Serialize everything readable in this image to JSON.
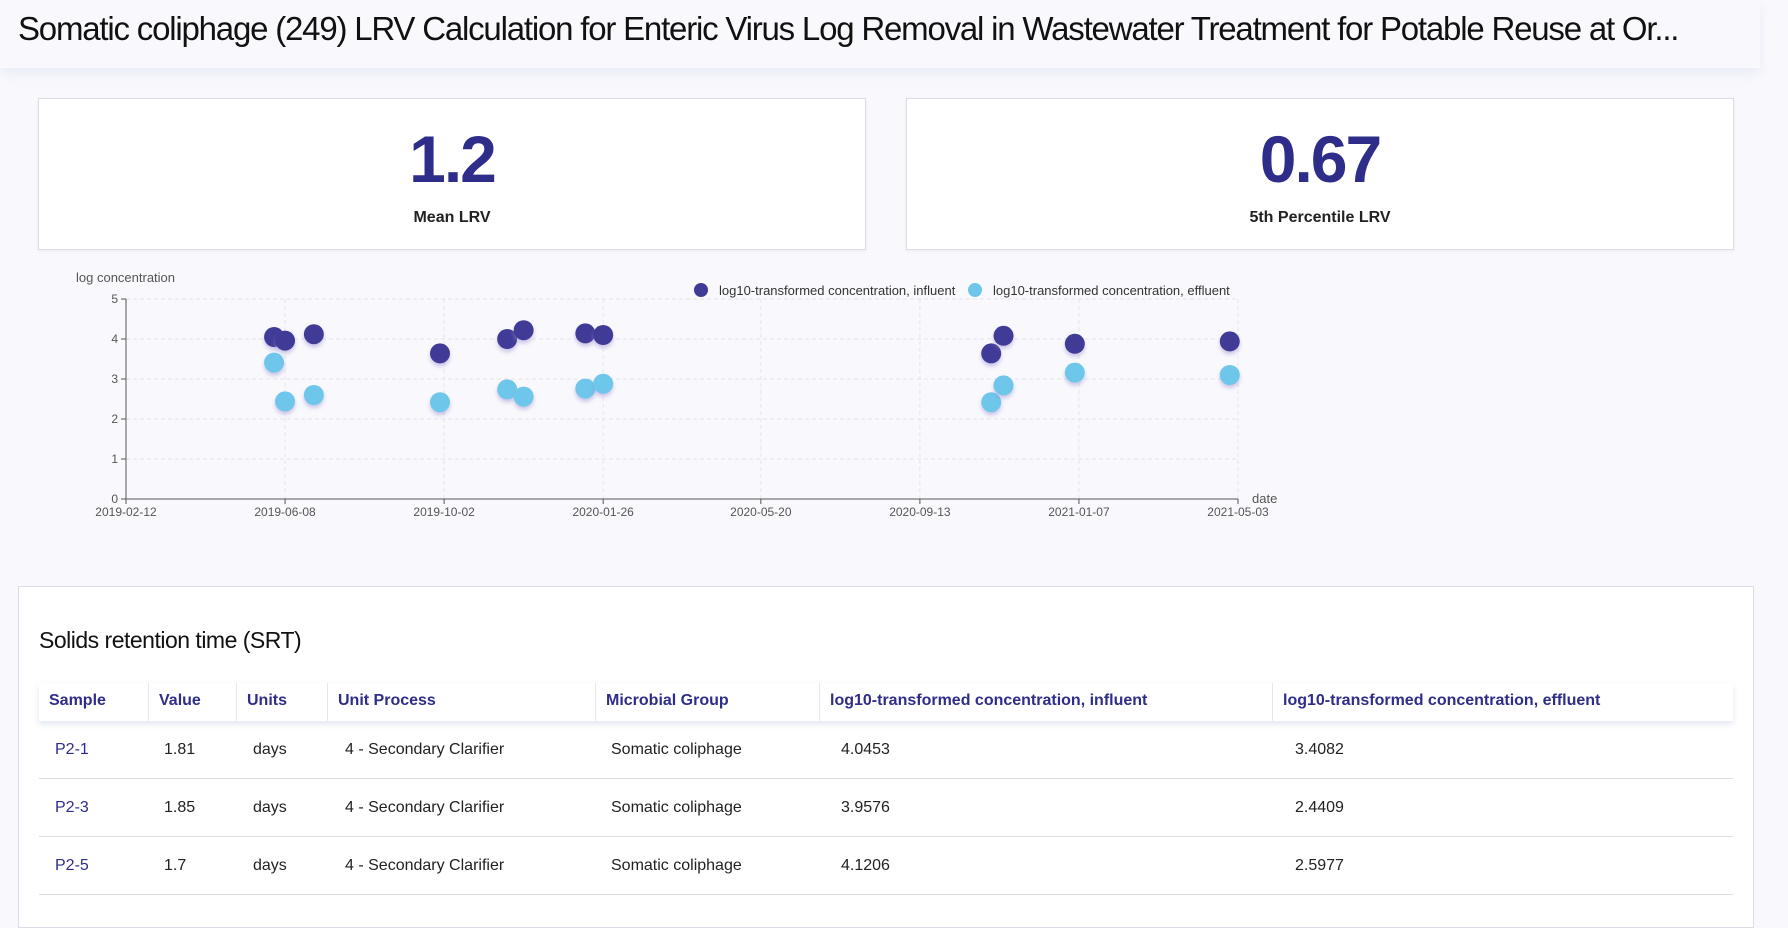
{
  "header": {
    "title": "Somatic coliphage (249) LRV Calculation for Enteric Virus Log Removal in Wastewater Treatment for Potable Reuse at Or..."
  },
  "stats": [
    {
      "value": "1.2",
      "label": "Mean LRV"
    },
    {
      "value": "0.67",
      "label": "5th Percentile LRV"
    }
  ],
  "chart_data": {
    "type": "scatter",
    "ylabel": "log concentration",
    "xlabel": "date",
    "ylim": [
      0,
      5
    ],
    "xlim": [
      "2019-02-12",
      "2021-05-03"
    ],
    "x_ticks": [
      "2019-02-12",
      "2019-06-08",
      "2019-10-02",
      "2020-01-26",
      "2020-05-20",
      "2020-09-13",
      "2021-01-07",
      "2021-05-03"
    ],
    "y_ticks": [
      0,
      1,
      2,
      3,
      4,
      5
    ],
    "legend_position": "top",
    "grid": true,
    "series": [
      {
        "name": "log10-transformed concentration, influent",
        "color": "#3f3b96",
        "points": [
          [
            "2019-05-31",
            4.05
          ],
          [
            "2019-06-08",
            3.96
          ],
          [
            "2019-06-29",
            4.12
          ],
          [
            "2019-09-29",
            3.64
          ],
          [
            "2019-11-17",
            4.0
          ],
          [
            "2019-11-29",
            4.22
          ],
          [
            "2020-01-13",
            4.14
          ],
          [
            "2020-01-26",
            4.1
          ],
          [
            "2020-11-04",
            3.64
          ],
          [
            "2020-11-13",
            4.08
          ],
          [
            "2021-01-04",
            3.88
          ],
          [
            "2021-04-27",
            3.94
          ]
        ]
      },
      {
        "name": "log10-transformed concentration, effluent",
        "color": "#6ec6ea",
        "points": [
          [
            "2019-05-31",
            3.41
          ],
          [
            "2019-06-08",
            2.44
          ],
          [
            "2019-06-29",
            2.6
          ],
          [
            "2019-09-29",
            2.42
          ],
          [
            "2019-11-17",
            2.74
          ],
          [
            "2019-11-29",
            2.56
          ],
          [
            "2020-01-13",
            2.76
          ],
          [
            "2020-01-26",
            2.88
          ],
          [
            "2020-11-04",
            2.42
          ],
          [
            "2020-11-13",
            2.84
          ],
          [
            "2021-01-04",
            3.16
          ],
          [
            "2021-04-27",
            3.1
          ]
        ]
      }
    ]
  },
  "table": {
    "title": "Solids retention time (SRT)",
    "columns": [
      "Sample",
      "Value",
      "Units",
      "Unit Process",
      "Microbial Group",
      "log10-transformed concentration, influent",
      "log10-transformed concentration, effluent"
    ],
    "rows": [
      [
        "P2-1",
        "1.81",
        "days",
        "4 - Secondary Clarifier",
        "Somatic coliphage",
        "4.0453",
        "3.4082"
      ],
      [
        "P2-3",
        "1.85",
        "days",
        "4 - Secondary Clarifier",
        "Somatic coliphage",
        "3.9576",
        "2.4409"
      ],
      [
        "P2-5",
        "1.7",
        "days",
        "4 - Secondary Clarifier",
        "Somatic coliphage",
        "4.1206",
        "2.5977"
      ]
    ]
  }
}
